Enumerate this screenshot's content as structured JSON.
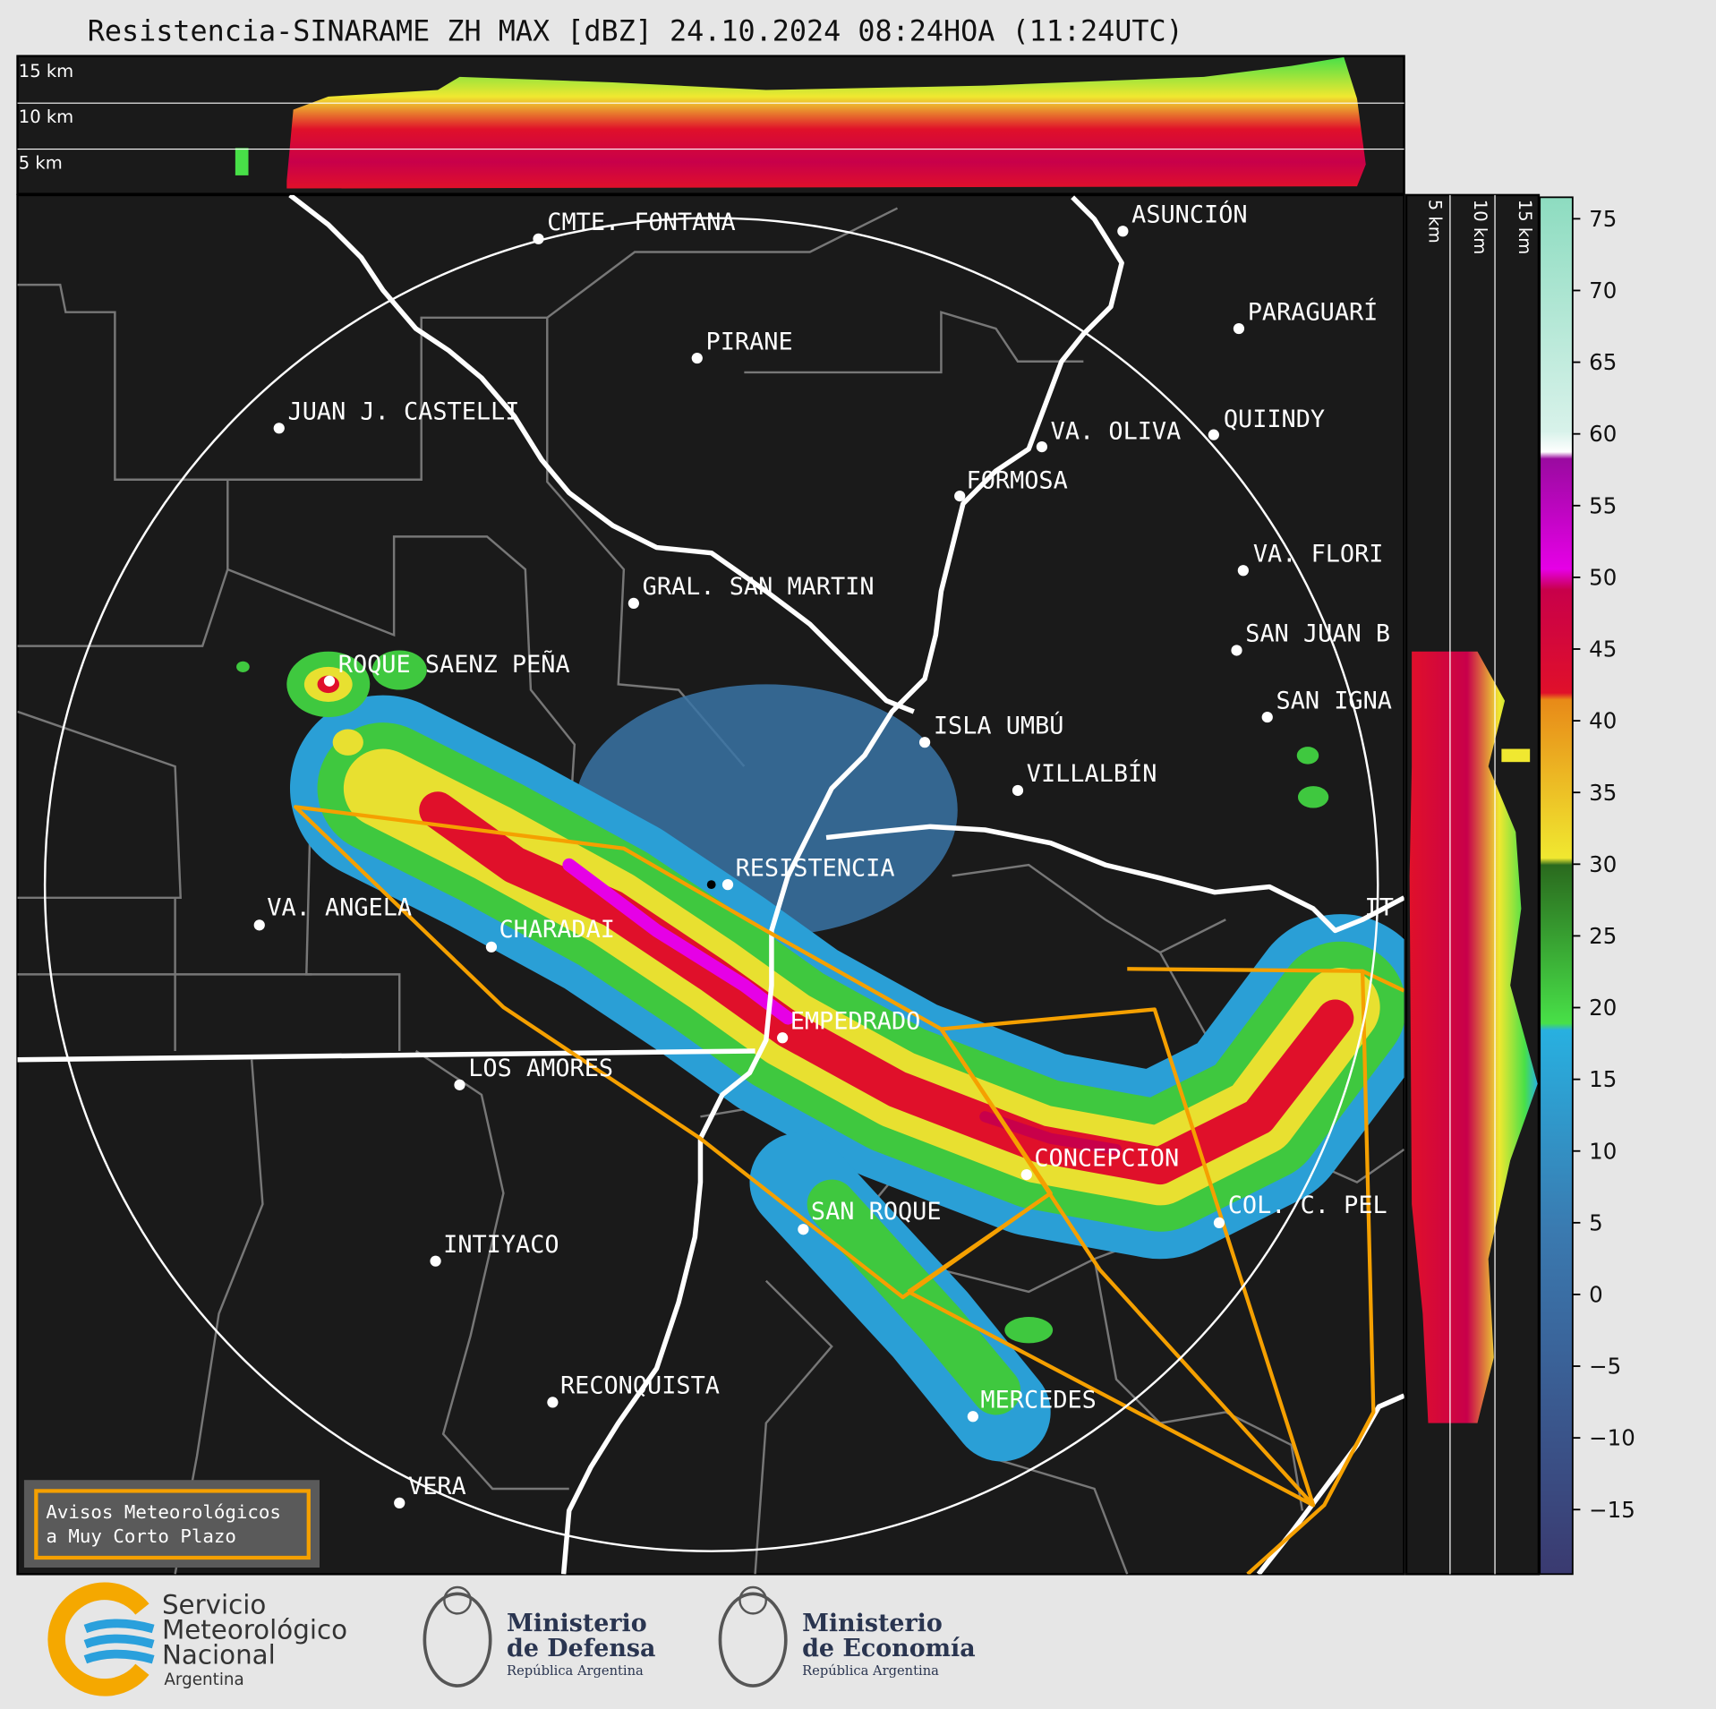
{
  "header": {
    "title": "Resistencia-SINARAME ZH MAX [dBZ] 24.10.2024 08:24HOA (11:24UTC)"
  },
  "cross_section_top": {
    "height_labels": [
      "15 km",
      "10 km",
      "5 km"
    ]
  },
  "cross_section_side": {
    "height_labels": [
      "5 km",
      "10 km",
      "15 km"
    ]
  },
  "map": {
    "cities": [
      "CMTE. FONTANA",
      "ASUNCIÓN",
      "PIRANE",
      "PARAGUARÍ",
      "JUAN J. CASTELLI",
      "VA. OLIVA",
      "QUIINDY",
      "FORMOSA",
      "VA. FLORI",
      "GRAL. SAN MARTIN",
      "SAN JUAN B",
      "ROQUE SAENZ PEÑA",
      "SAN IGNA",
      "ISLA UMBÚ",
      "VILLALBÍN",
      "RESISTENCIA",
      "VA. ANGELA",
      "CHARADAI",
      "IT",
      "EMPEDRADO",
      "LOS AMORES",
      "CONCEPCION",
      "COL. C. PEL",
      "SAN ROQUE",
      "INTIYACO",
      "RECONQUISTA",
      "MERCEDES",
      "VERA"
    ]
  },
  "colorbar": {
    "lim": [
      -19.5,
      76.5
    ],
    "ticks": [
      75,
      70,
      65,
      60,
      55,
      50,
      45,
      40,
      35,
      30,
      25,
      20,
      15,
      10,
      5,
      0,
      {
        "value": -5,
        "label": "−5"
      },
      {
        "value": -10,
        "label": "−10"
      },
      {
        "value": -15,
        "label": "−15"
      }
    ]
  },
  "legend_box": {
    "lines": [
      "Avisos Meteorológicos",
      "a Muy Corto Plazo"
    ]
  },
  "footer": {
    "logos": [
      {
        "lines": [
          "Servicio",
          "Meteorológico",
          "Nacional",
          "Argentina"
        ]
      },
      {
        "lines": [
          "Ministerio",
          "de Defensa",
          "República Argentina"
        ]
      },
      {
        "lines": [
          "Ministerio",
          "de Economía",
          "República Argentina"
        ]
      }
    ]
  }
}
